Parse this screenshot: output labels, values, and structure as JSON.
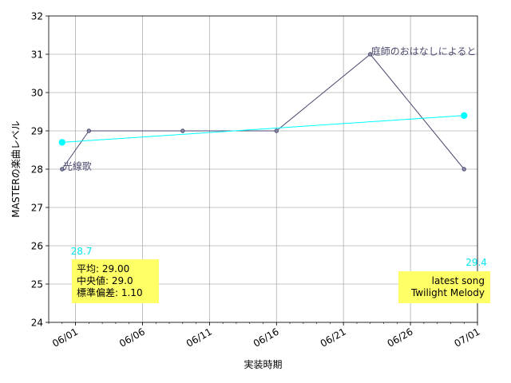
{
  "chart_data": {
    "type": "line",
    "title": "",
    "xlabel": "実装時期",
    "ylabel": "MASTERの楽曲レベル",
    "ylim": [
      24,
      32
    ],
    "yticks": [
      24,
      25,
      26,
      27,
      28,
      29,
      30,
      31,
      32
    ],
    "xlim": [
      "2023-05-30",
      "2023-07-01"
    ],
    "xticks": [
      {
        "date": "2023-06-01",
        "label": "06/01"
      },
      {
        "date": "2023-06-06",
        "label": "06/06"
      },
      {
        "date": "2023-06-11",
        "label": "06/11"
      },
      {
        "date": "2023-06-16",
        "label": "06/16"
      },
      {
        "date": "2023-06-21",
        "label": "06/21"
      },
      {
        "date": "2023-06-26",
        "label": "06/26"
      },
      {
        "date": "2023-07-01",
        "label": "07/01"
      }
    ],
    "grid": true,
    "series": [
      {
        "color": "#4a4a6e",
        "points": [
          {
            "x": "2023-05-31",
            "y": 28
          },
          {
            "x": "2023-06-02",
            "y": 29
          },
          {
            "x": "2023-06-09",
            "y": 29
          },
          {
            "x": "2023-06-16",
            "y": 29
          },
          {
            "x": "2023-06-23",
            "y": 31
          },
          {
            "x": "2023-06-30",
            "y": 28
          }
        ]
      },
      {
        "color": "#00ffff",
        "points": [
          {
            "x": "2023-05-31",
            "y": 28.7
          },
          {
            "x": "2023-06-30",
            "y": 29.4
          }
        ]
      }
    ],
    "annotations": [
      {
        "text": "光線歌",
        "x": "2023-05-31",
        "y": 28
      },
      {
        "text": "庭師のおはなしによると",
        "x": "2023-06-23",
        "y": 31
      }
    ],
    "trend_labels": [
      {
        "text": "28.7",
        "x": "2023-05-31",
        "y": 28.7
      },
      {
        "text": "29.4",
        "x": "2023-06-30",
        "y": 29.4
      }
    ],
    "stats_box": {
      "lines": [
        "平均: 29.00",
        "中央値: 29.0",
        "標準偏差:  1.10"
      ],
      "background": "#ffff66"
    },
    "latest_box": {
      "lines": [
        "latest song",
        "Twilight Melody"
      ],
      "background": "#ffff66"
    }
  }
}
